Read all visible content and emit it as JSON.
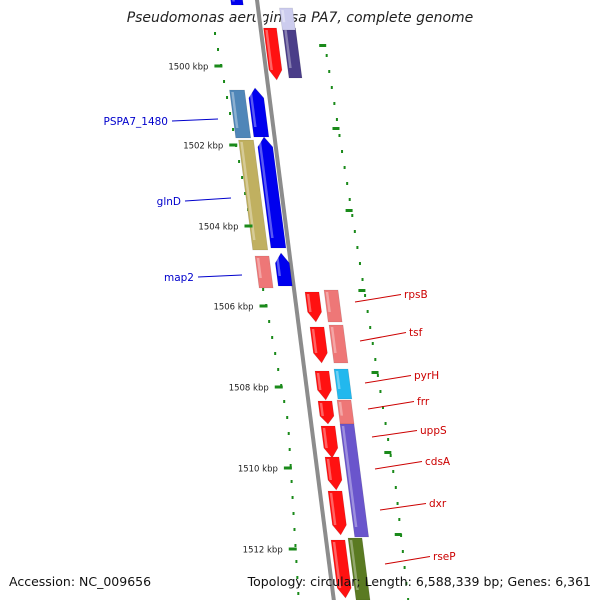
{
  "title": "Pseudomonas aeruginosa PA7, complete genome",
  "footer": {
    "accession": "Accession: NC_009656",
    "topology": "Topology: circular; Length: 6,588,339 bp; Genes: 6,361"
  },
  "ticks": [
    "1500 kbp",
    "1502 kbp",
    "1504 kbp",
    "1506 kbp",
    "1508 kbp",
    "1510 kbp",
    "1512 kbp"
  ],
  "genes_left": [
    "PSPA7_1480",
    "glnD",
    "map2"
  ],
  "genes_right": [
    "rpsB",
    "tsf",
    "pyrH",
    "frr",
    "uppS",
    "cdsA",
    "dxr",
    "rseP"
  ],
  "colors": {
    "backbone": "#8c8c8c",
    "tick": "#1a8a1a",
    "left_label": "#0000cc",
    "right_label": "#cc0000",
    "gene_blue": "#0000ee",
    "gene_red": "#ff1111",
    "gene_pink": "#ee7777",
    "gene_steel": "#4f86b8",
    "gene_olive": "#c0b060",
    "gene_cyan": "#22b8ee",
    "gene_purple": "#6a55cc",
    "gene_dkpurple": "#4a3d88",
    "gene_lavender": "#ccccee",
    "gene_green": "#5a7a22"
  }
}
